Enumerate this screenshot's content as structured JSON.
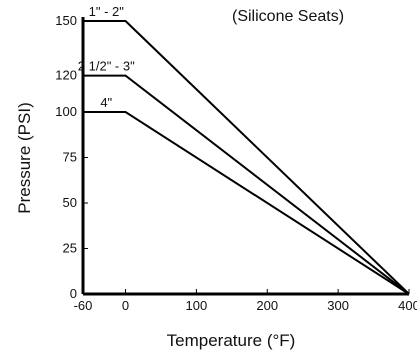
{
  "chart_data": {
    "type": "line",
    "subtitle": "(Silicone Seats)",
    "xlabel": "Temperature (°F)",
    "ylabel": "Pressure (PSI)",
    "xlim": [
      -60,
      400
    ],
    "ylim": [
      0,
      150
    ],
    "x_ticks": [
      -60,
      0,
      100,
      200,
      300,
      400
    ],
    "y_ticks": [
      0,
      25,
      50,
      75,
      100,
      120,
      150
    ],
    "grid": false,
    "series": [
      {
        "name": "1\" - 2\"",
        "points": [
          [
            -60,
            150
          ],
          [
            0,
            150
          ],
          [
            400,
            0
          ]
        ]
      },
      {
        "name": "2 1/2\" - 3\"",
        "points": [
          [
            -60,
            120
          ],
          [
            0,
            120
          ],
          [
            400,
            0
          ]
        ]
      },
      {
        "name": "4\"",
        "points": [
          [
            -60,
            100
          ],
          [
            0,
            100
          ],
          [
            400,
            0
          ]
        ]
      }
    ]
  }
}
